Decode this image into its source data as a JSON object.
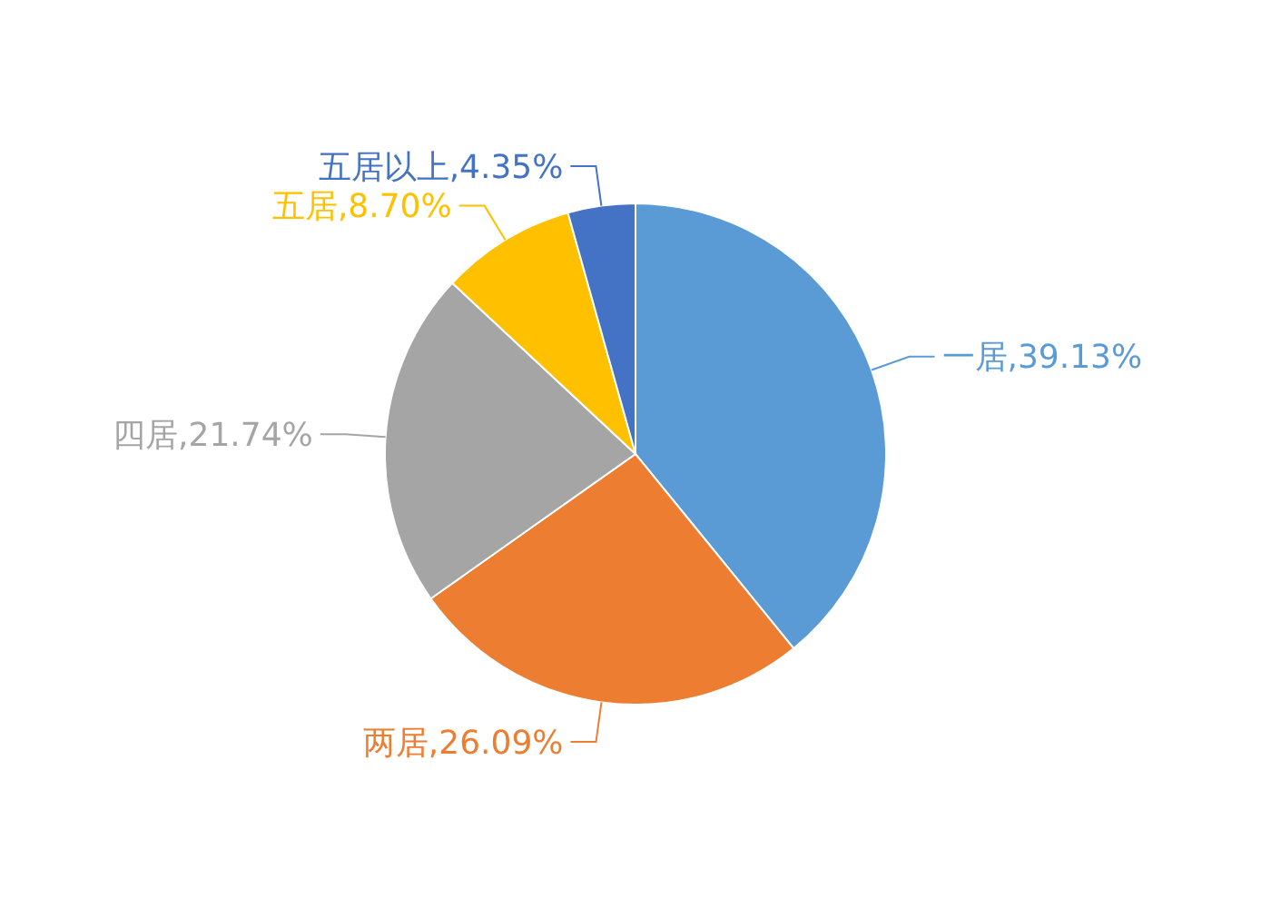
{
  "chart_data": {
    "type": "pie",
    "categories": [
      "一居",
      "两居",
      "四居",
      "五居",
      "五居以上"
    ],
    "values": [
      39.13,
      26.09,
      21.74,
      8.7,
      4.35
    ],
    "colors": [
      "#5b9bd5",
      "#ed7d31",
      "#a5a5a5",
      "#ffc000",
      "#4472c4"
    ],
    "value_labels": [
      "39.13%",
      "26.09%",
      "21.74%",
      "8.70%",
      "4.35%"
    ]
  }
}
